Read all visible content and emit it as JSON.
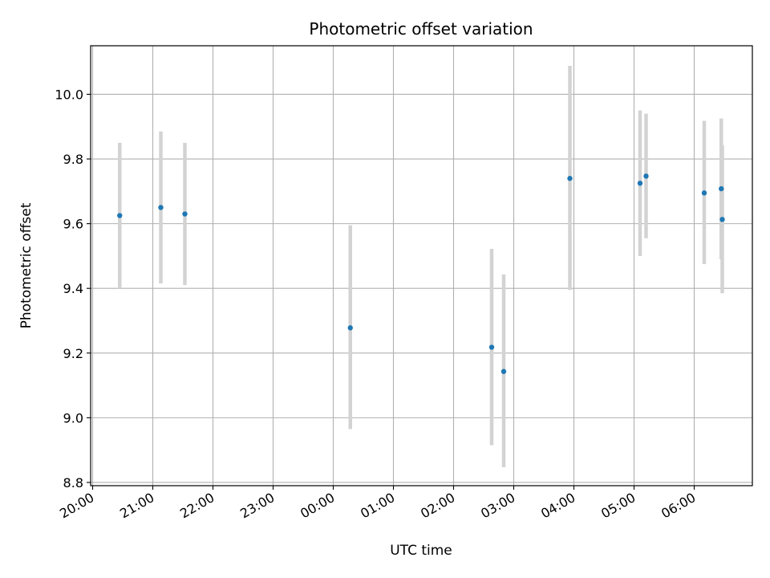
{
  "chart_data": {
    "type": "scatter",
    "title": "Photometric offset variation",
    "xlabel": "UTC time",
    "ylabel": "Photometric offset",
    "x_axis_kind": "time",
    "x_ticks": [
      "20:00",
      "21:00",
      "22:00",
      "23:00",
      "00:00",
      "01:00",
      "02:00",
      "03:00",
      "04:00",
      "05:00",
      "06:00"
    ],
    "xlim": [
      "19:58",
      "06:58"
    ],
    "y_ticks": [
      8.8,
      9.0,
      9.2,
      9.4,
      9.6,
      9.8,
      10.0
    ],
    "ylim": [
      8.79,
      10.15
    ],
    "grid": true,
    "errorbar_color": "#d3d3d3",
    "marker_color": "#1f77b4",
    "series": [
      {
        "points": [
          {
            "x": "20:27",
            "y": 9.625,
            "err_low": 9.4,
            "err_high": 9.85
          },
          {
            "x": "21:08",
            "y": 9.65,
            "err_low": 9.415,
            "err_high": 9.885
          },
          {
            "x": "21:32",
            "y": 9.63,
            "err_low": 9.41,
            "err_high": 9.85
          },
          {
            "x": "00:17",
            "y": 9.278,
            "err_low": 8.965,
            "err_high": 9.595
          },
          {
            "x": "02:38",
            "y": 9.218,
            "err_low": 8.915,
            "err_high": 9.522
          },
          {
            "x": "02:50",
            "y": 9.143,
            "err_low": 8.847,
            "err_high": 9.443
          },
          {
            "x": "03:56",
            "y": 9.74,
            "err_low": 9.395,
            "err_high": 10.088
          },
          {
            "x": "05:06",
            "y": 9.725,
            "err_low": 9.5,
            "err_high": 9.95
          },
          {
            "x": "05:12",
            "y": 9.747,
            "err_low": 9.555,
            "err_high": 9.94
          },
          {
            "x": "06:10",
            "y": 9.695,
            "err_low": 9.475,
            "err_high": 9.918
          },
          {
            "x": "06:27",
            "y": 9.708,
            "err_low": 9.49,
            "err_high": 9.925
          },
          {
            "x": "06:28",
            "y": 9.613,
            "err_low": 9.385,
            "err_high": 9.843
          }
        ]
      }
    ]
  }
}
